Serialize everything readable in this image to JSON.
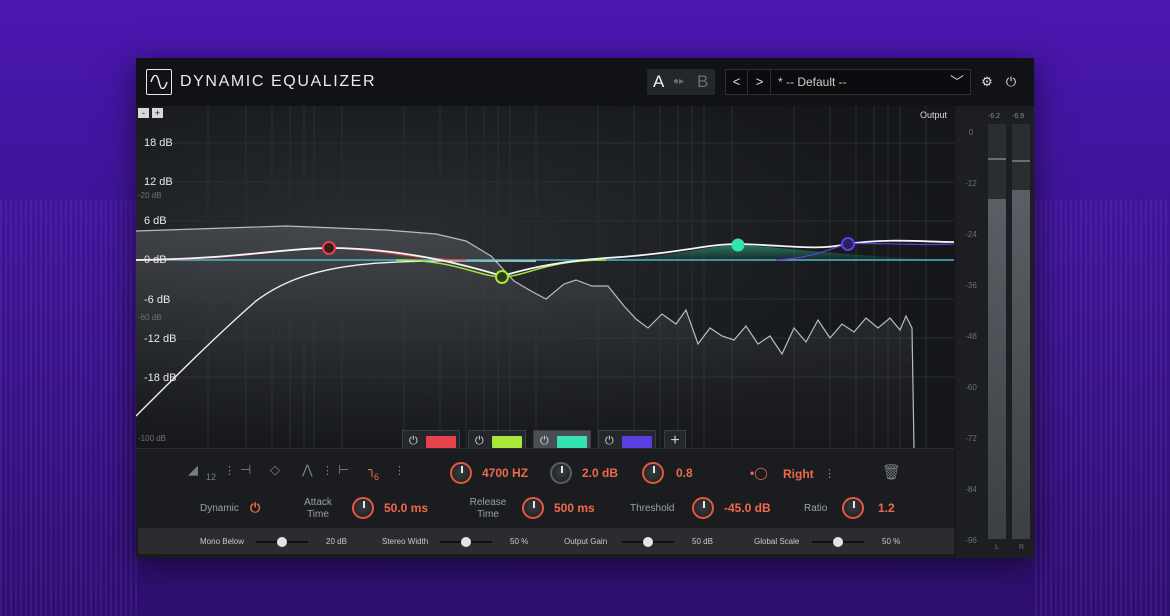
{
  "app": {
    "title": "DYNAMIC EQUALIZER",
    "logo_icon": "sine-wave-icon",
    "ab": {
      "a": "A",
      "b": "B",
      "copy_icon": "copy-arrow-icon"
    },
    "preset": {
      "prev": "<",
      "next": ">",
      "name": "* -- Default --",
      "dropdown_icon": "chevron-down-icon"
    },
    "settings_icon": "gear-icon",
    "power_icon": "power-icon"
  },
  "eq": {
    "zoom_out": "-",
    "zoom_in": "+",
    "output_label": "Output",
    "db_labels": [
      "18 dB",
      "12 dB",
      "6 dB",
      "0 dB",
      "-6 dB",
      "-12 dB",
      "-18 dB"
    ],
    "db_labels_small": [
      "-20 dB",
      "-60 dB",
      "-100 dB"
    ],
    "band_colors": [
      "#e8424d",
      "#a8e83a",
      "#34e3b0",
      "#5b3fe0"
    ],
    "active_band": 2,
    "add_band": "+"
  },
  "band_controls": {
    "filter_slope": "12",
    "filter_slope_active": "6",
    "frequency": "4700 HZ",
    "gain": "2.0 dB",
    "q": "0.8",
    "channel": "Right"
  },
  "dynamics": {
    "dynamic_label": "Dynamic",
    "attack_label": "Attack Time",
    "attack_value": "50.0 ms",
    "release_label": "Release Time",
    "release_value": "500 ms",
    "threshold_label": "Threshold",
    "threshold_value": "-45.0 dB",
    "ratio_label": "Ratio",
    "ratio_value": "1.2"
  },
  "footer": {
    "mono_below_label": "Mono Below",
    "mono_below_value": "20 dB",
    "mono_below_level": 0.5,
    "stereo_width_label": "Stereo Width",
    "stereo_width_value": "50 %",
    "stereo_width_level": 0.5,
    "output_gain_label": "Output Gain",
    "output_gain_value": "50 dB",
    "output_gain_level": 0.5,
    "global_scale_label": "Global Scale",
    "global_scale_value": "50 %",
    "global_scale_level": 0.5
  },
  "meter": {
    "scale": [
      "0",
      "-12",
      "-24",
      "-36",
      "-48",
      "-60",
      "-72",
      "-84",
      "-96"
    ],
    "left_peak": "-6.2",
    "right_peak": "-6.9",
    "left_label": "L",
    "right_label": "R",
    "left_level": 0.82,
    "right_level": 0.84
  }
}
